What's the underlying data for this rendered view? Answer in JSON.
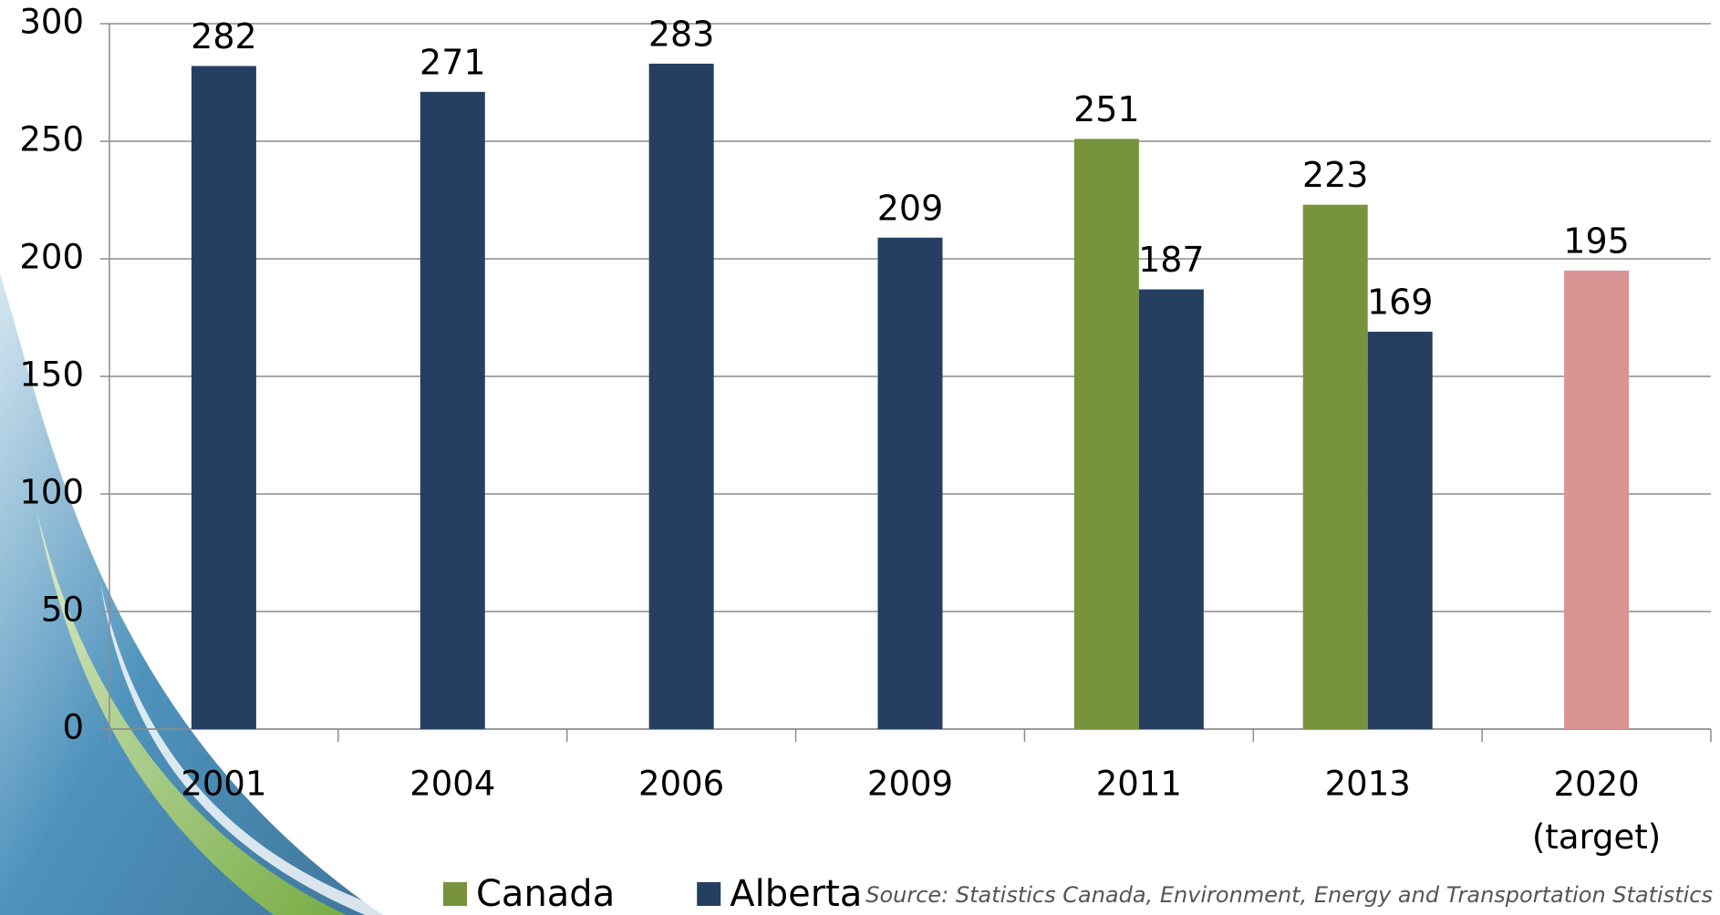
{
  "chart_data": {
    "type": "bar",
    "categories": [
      "2001",
      "2004",
      "2006",
      "2009",
      "2011",
      "2013",
      "2020 (target)"
    ],
    "series": [
      {
        "name": "Canada",
        "color": "#77933c",
        "values": [
          null,
          null,
          null,
          null,
          251,
          223,
          null
        ]
      },
      {
        "name": "Alberta",
        "color": "#243f60",
        "values": [
          282,
          271,
          283,
          209,
          187,
          169,
          null
        ]
      },
      {
        "color": "#d99594",
        "values": [
          null,
          null,
          null,
          null,
          null,
          null,
          195
        ]
      }
    ],
    "ylim": [
      0,
      300
    ],
    "yticks": [
      0,
      50,
      100,
      150,
      200,
      250,
      300
    ],
    "grid": true,
    "legend": "bottom",
    "source": "Source: Statistics Canada, Environment, Energy and Transportation Statistics"
  }
}
